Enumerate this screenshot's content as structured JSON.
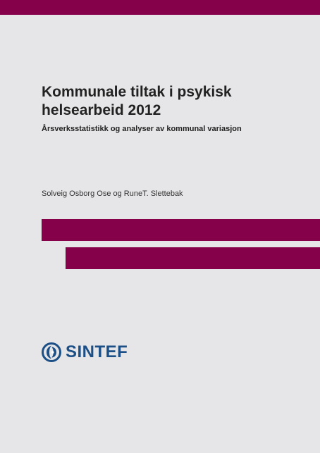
{
  "colors": {
    "accent": "#85014a",
    "brand": "#1b4f86",
    "background": "#e6e6e8"
  },
  "document": {
    "title": "Kommunale tiltak i psykisk\nhelsearbeid 2012",
    "subtitle": "Årsverksstatistikk og analyser av kommunal variasjon",
    "authors": "Solveig Osborg Ose og RuneT. Slettebak"
  },
  "logo": {
    "icon": "sintef-logo-icon",
    "text": "SINTEF"
  }
}
